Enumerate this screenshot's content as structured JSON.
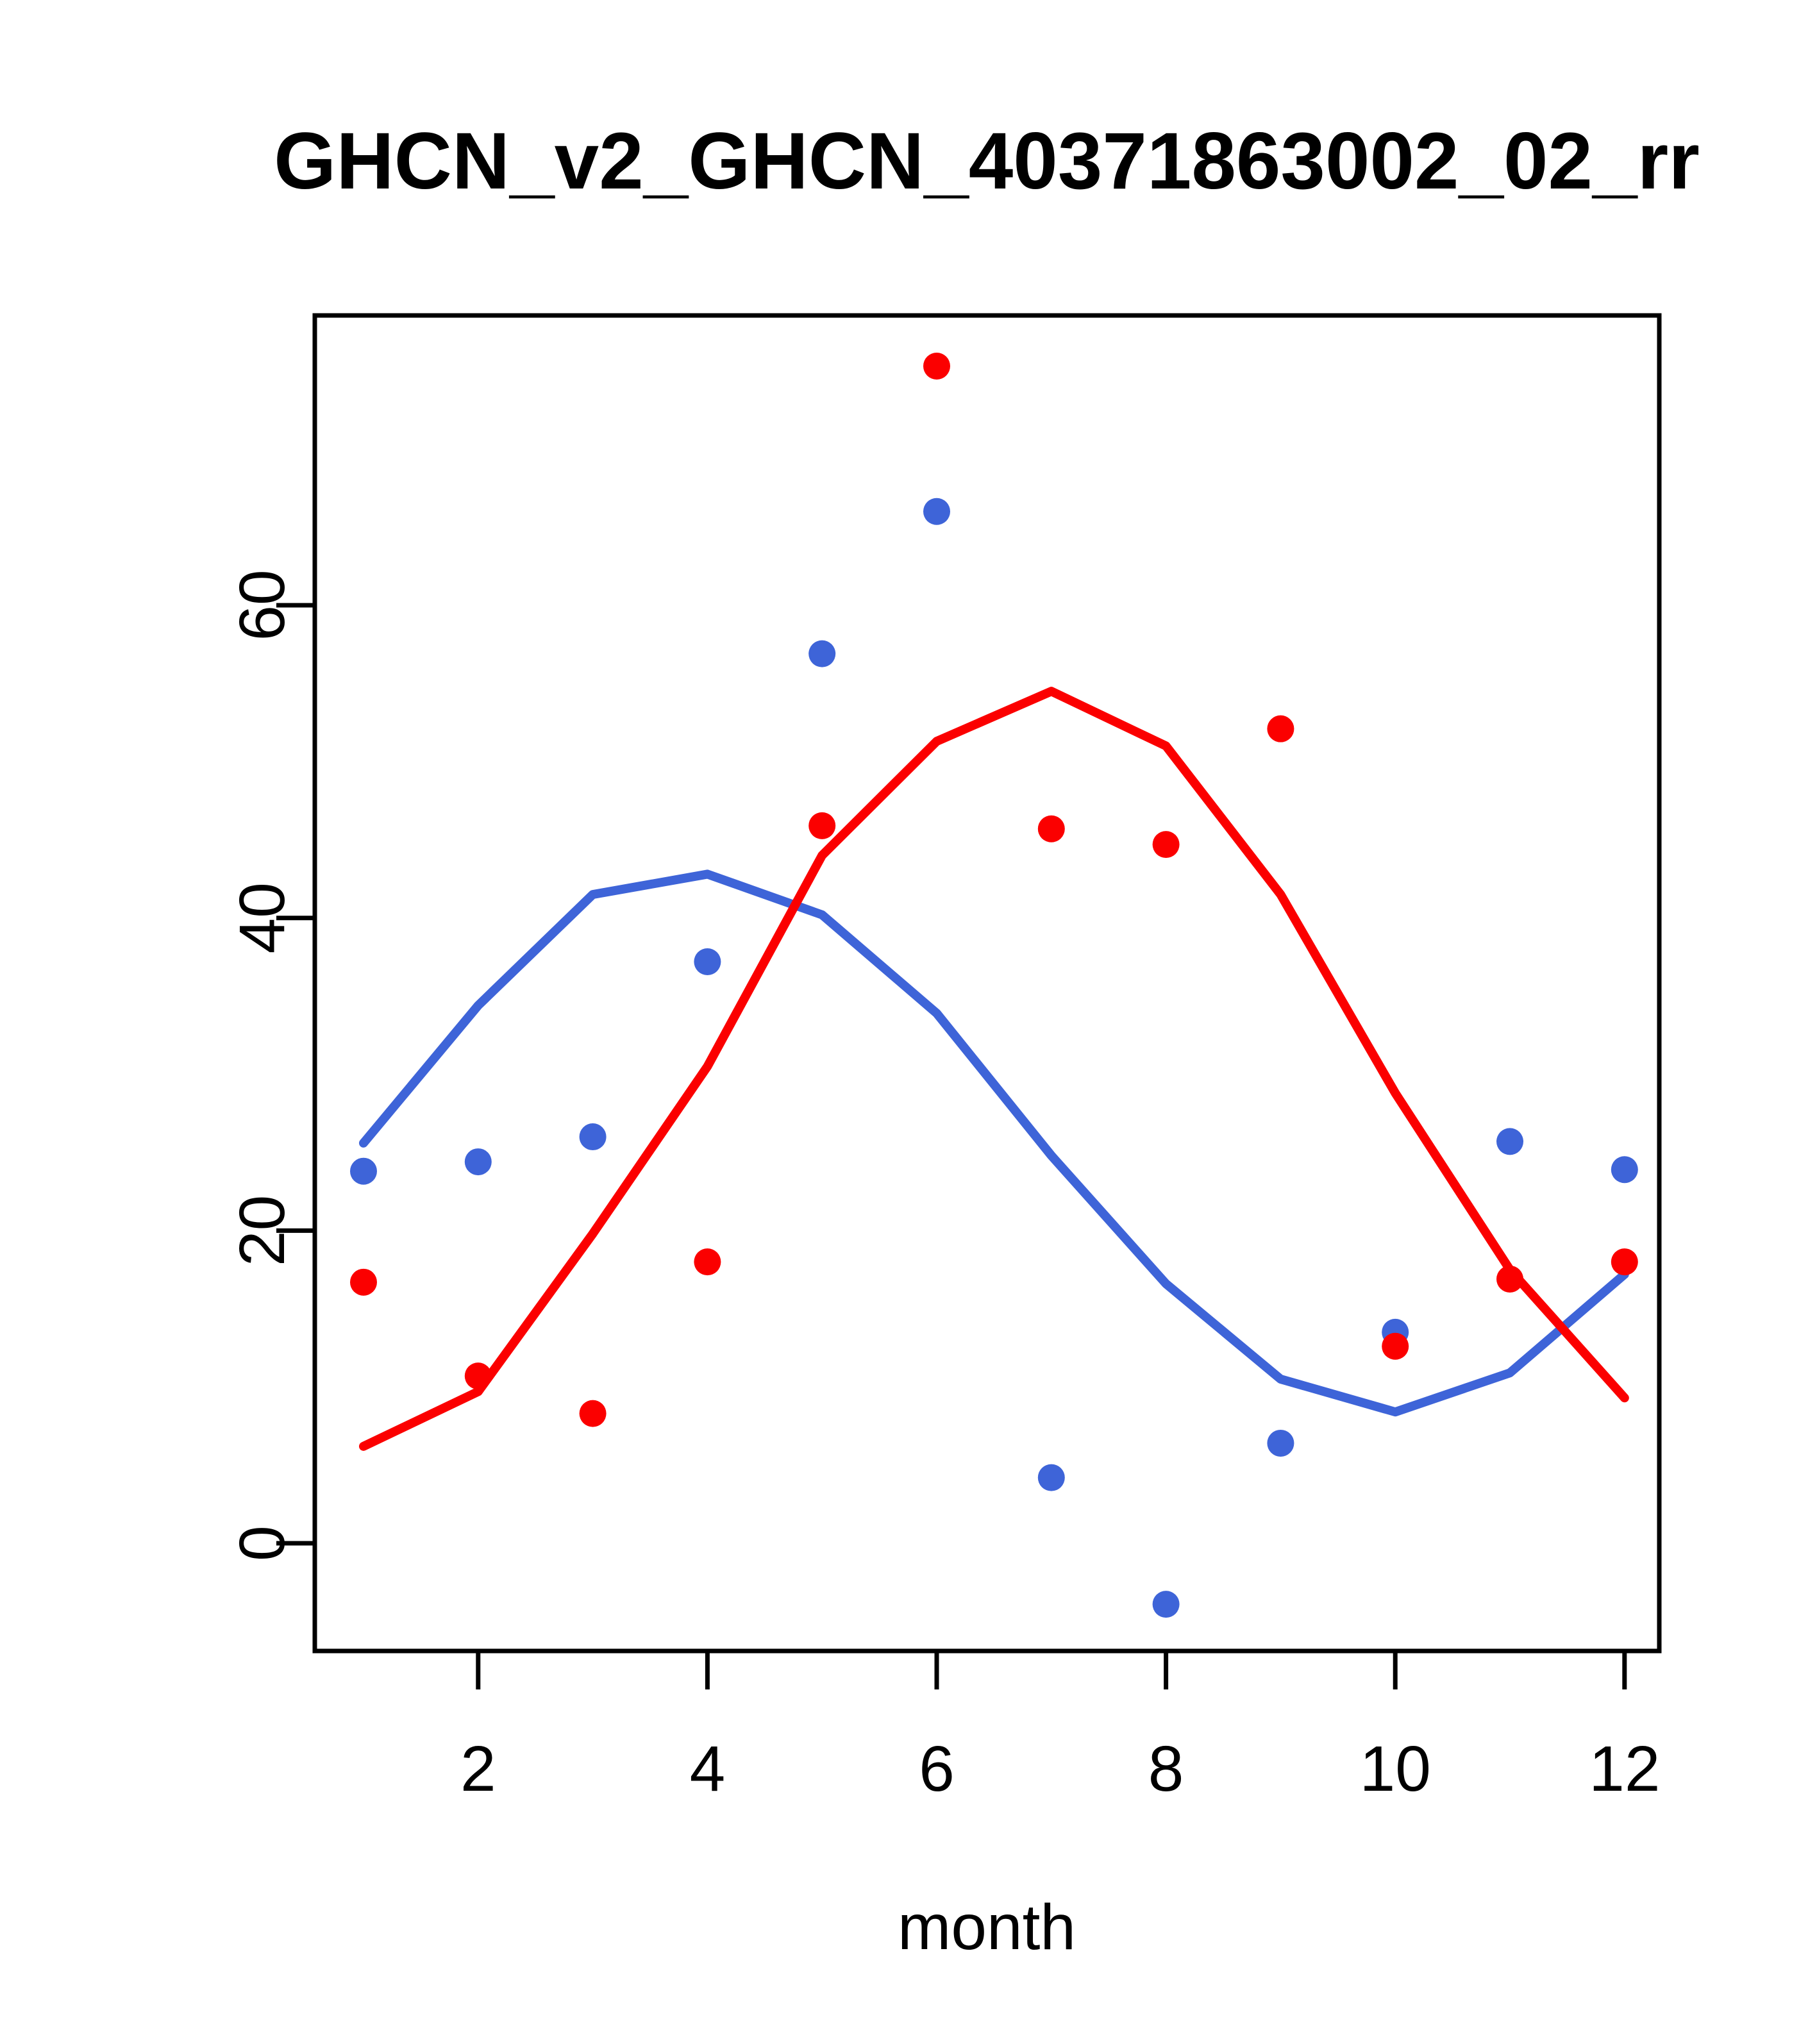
{
  "figure": {
    "title": "GHCN_v2_GHCN_40371863002_02_rr",
    "xlabel": "month",
    "background": "#ffffff",
    "axis_color": "#000000"
  },
  "chart_data": {
    "type": "scatter",
    "title": "GHCN_v2_GHCN_40371863002_02_rr",
    "xlabel": "month",
    "ylabel": "",
    "x": [
      1,
      2,
      3,
      4,
      5,
      6,
      7,
      8,
      9,
      10,
      11,
      12
    ],
    "x_ticks": [
      2,
      4,
      6,
      8,
      10,
      12
    ],
    "y_ticks": [
      0,
      20,
      40,
      60
    ],
    "xlim": [
      0.575,
      12.303
    ],
    "ylim": [
      -6.89,
      78.54
    ],
    "grid": false,
    "legend": null,
    "series": [
      {
        "name": "blue-points",
        "kind": "points",
        "color": "#3E64D8",
        "values": [
          23.8,
          24.4,
          26.0,
          37.2,
          56.9,
          66.0,
          4.2,
          -3.9,
          6.4,
          13.5,
          25.7,
          23.9
        ]
      },
      {
        "name": "red-points",
        "kind": "points",
        "color": "#FB0000",
        "values": [
          16.7,
          10.7,
          8.3,
          18.0,
          45.9,
          75.3,
          45.7,
          44.7,
          52.1,
          12.6,
          16.9,
          18.0
        ]
      },
      {
        "name": "blue-smooth-line",
        "kind": "line",
        "color": "#3E64D8",
        "values": [
          25.6,
          34.4,
          41.5,
          42.8,
          40.2,
          33.9,
          24.8,
          16.6,
          10.5,
          8.4,
          10.9,
          17.2
        ]
      },
      {
        "name": "red-smooth-line",
        "kind": "line",
        "color": "#FB0000",
        "values": [
          6.2,
          9.7,
          19.8,
          30.5,
          44.0,
          51.3,
          54.5,
          51.0,
          41.5,
          28.8,
          17.5,
          9.3
        ]
      }
    ]
  }
}
